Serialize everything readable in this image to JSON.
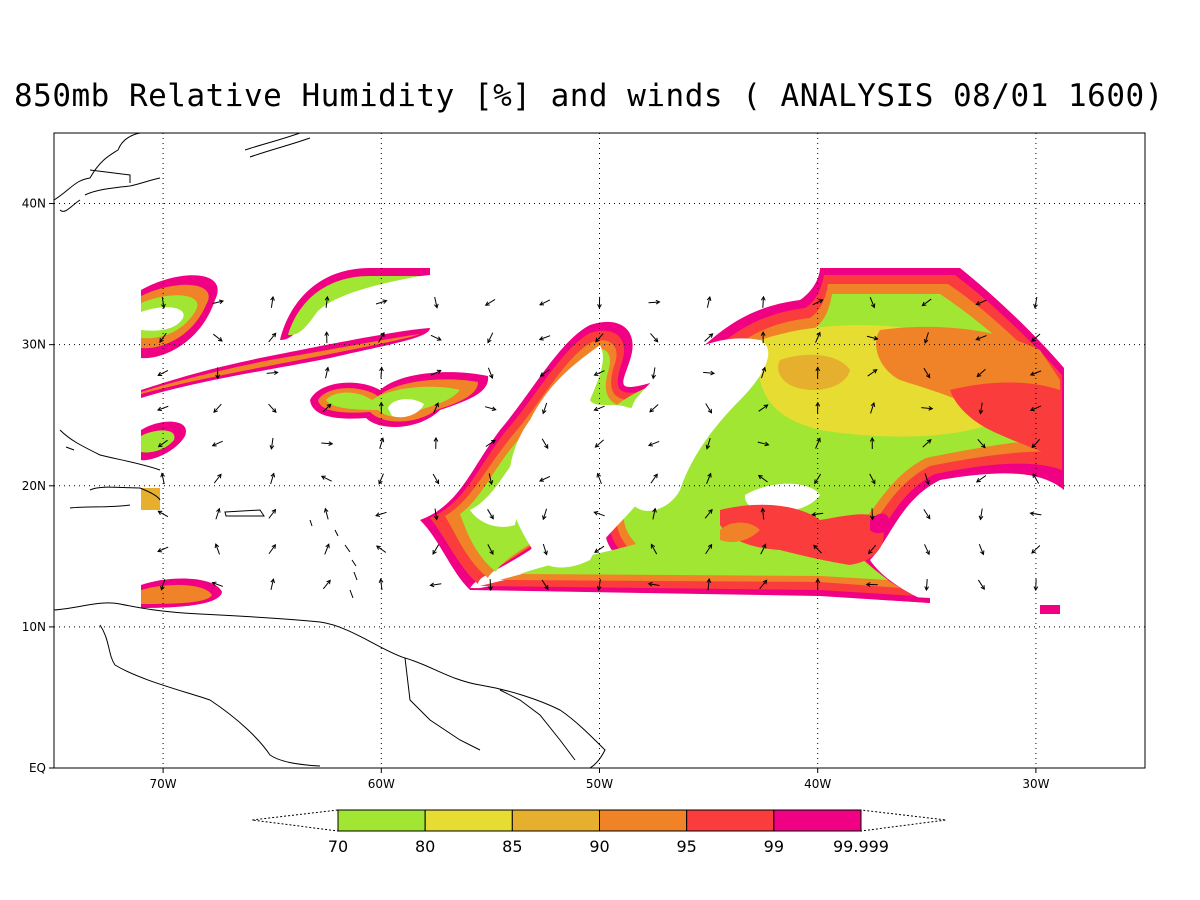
{
  "title": "850mb Relative Humidity [%] and winds ( ANALYSIS 08/01 1600)",
  "map": {
    "region": "Tropical Atlantic",
    "lon_range": [
      -75,
      -25
    ],
    "lat_range": [
      0,
      45
    ],
    "longitude_ticks": [
      {
        "lon": -70,
        "label": "70W"
      },
      {
        "lon": -60,
        "label": "60W"
      },
      {
        "lon": -50,
        "label": "50W"
      },
      {
        "lon": -40,
        "label": "40W"
      },
      {
        "lon": -30,
        "label": "30W"
      }
    ],
    "latitude_ticks": [
      {
        "lat": 0,
        "label": "EQ"
      },
      {
        "lat": 10,
        "label": "10N"
      },
      {
        "lat": 20,
        "label": "20N"
      },
      {
        "lat": 30,
        "label": "30N"
      },
      {
        "lat": 40,
        "label": "40N"
      }
    ],
    "grid": "dotted",
    "data_domain": {
      "lon": [
        -71,
        -29
      ],
      "lat": [
        12,
        35
      ]
    }
  },
  "colorbar": {
    "levels": [
      "70",
      "80",
      "85",
      "90",
      "95",
      "99",
      "99.999"
    ],
    "colors": [
      "#a0e632",
      "#e6dc32",
      "#e6af2d",
      "#f08228",
      "#fa3c3c",
      "#f00082"
    ]
  },
  "humidity_colors": [
    "#a0e632",
    "#e6dc32",
    "#e6af2d",
    "#f08228",
    "#fa3c3c",
    "#f00082"
  ]
}
